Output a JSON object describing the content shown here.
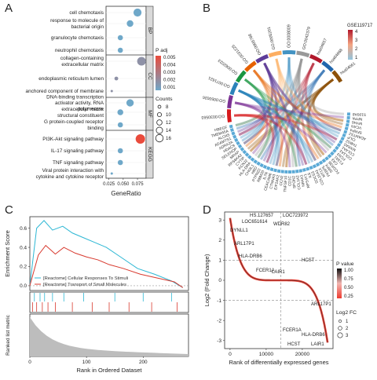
{
  "panels": {
    "a": "A",
    "b": "B",
    "c": "C",
    "d": "D"
  },
  "colors": {
    "padj_high": "#e94b3c",
    "padj_low": "#6fa8c9",
    "chord_gene": "#5aa9d6",
    "cyan_line": "#2db7d4",
    "red_line": "#d8392e",
    "volcano_red": "#ee3b2f",
    "strip_bg": "#d9d9d9"
  },
  "chart_data": [
    {
      "type": "scatter",
      "panel": "A",
      "xlabel": "GeneRatio",
      "xtick_labels": [
        "0.025",
        "0.050",
        "0.075"
      ],
      "xlim": [
        0.02,
        0.09
      ],
      "groups": [
        {
          "name": "BP",
          "terms": [
            {
              "label": "cell chemotaxis",
              "x": 0.075,
              "padj": 0.001,
              "count": 14
            },
            {
              "label": "response to molecule of bacterial origin",
              "x": 0.062,
              "padj": 0.001,
              "count": 12
            },
            {
              "label": "granulocyte chemotaxis",
              "x": 0.045,
              "padj": 0.001,
              "count": 10
            },
            {
              "label": "neutrophil chemotaxis",
              "x": 0.045,
              "padj": 0.001,
              "count": 10
            }
          ]
        },
        {
          "name": "CC",
          "terms": [
            {
              "label": "collagen-containing extracellular matrix",
              "x": 0.082,
              "padj": 0.002,
              "count": 15
            },
            {
              "label": "endoplasmic reticulum lumen",
              "x": 0.038,
              "padj": 0.002,
              "count": 8
            },
            {
              "label": "anchored component of membrane",
              "x": 0.03,
              "padj": 0.002,
              "count": 6
            }
          ]
        },
        {
          "name": "MF",
          "terms": [
            {
              "label": "DNA-binding transcription activator activity, RNA polymerase",
              "x": 0.062,
              "padj": 0.001,
              "count": 13
            },
            {
              "label": "extracellular matrix structural constituent",
              "x": 0.045,
              "padj": 0.001,
              "count": 11
            },
            {
              "label": "G protein-coupled receptor binding",
              "x": 0.045,
              "padj": 0.001,
              "count": 10
            }
          ]
        },
        {
          "name": "KEGG",
          "terms": [
            {
              "label": "PI3K-Akt signaling pathway",
              "x": 0.08,
              "padj": 0.005,
              "count": 16
            },
            {
              "label": "IL-17 signaling pathway",
              "x": 0.045,
              "padj": 0.001,
              "count": 10
            },
            {
              "label": "TNF signaling pathway",
              "x": 0.045,
              "padj": 0.001,
              "count": 10
            },
            {
              "label": "Viral protein interaction with cytokine and cytokine receptor",
              "x": 0.03,
              "padj": 0.001,
              "count": 6
            }
          ]
        }
      ],
      "padj_legend": {
        "title": "P adj",
        "ticks": [
          "0.005",
          "0.004",
          "0.003",
          "0.002",
          "0.001"
        ]
      },
      "count_legend": {
        "title": "Counts",
        "values": [
          8,
          10,
          12,
          14,
          16
        ]
      }
    },
    {
      "type": "chord",
      "panel": "B",
      "legend_title": "GSE119717",
      "legend_ticks": [
        "4",
        "3",
        "2",
        "1"
      ],
      "genes": [
        "HBEGF",
        "TMEM45A",
        "ALOX5",
        "ADAMTS1",
        "ADRA2A",
        "HDAC9",
        "SELENOP",
        "MRAP",
        "RPS6KA2",
        "CYTIP",
        "KCNJ2",
        "HLA-DRA",
        "CHI3L1",
        "HBD",
        "PTPN22",
        "RBM20",
        "IL7R",
        "CEACAM6",
        "CTNNA3",
        "EIF2AK2",
        "CCN2",
        "TNFSF10",
        "CD1C",
        "SPON2",
        "COL1A2",
        "NR4A1",
        "RPS4Y1",
        "IL6",
        "SOCS3",
        "COL15A1",
        "MT1X",
        "FKBP5",
        "SRPX",
        "FCGR3B",
        "CA3",
        "F13A1",
        "FCN3",
        "COL1A1",
        "COL4A1",
        "MXRA5",
        "THBS2",
        "CILP",
        "ADAMTS2",
        "SFRP4",
        "VCAN",
        "MYH6",
        "NPPA",
        "S100A8"
      ],
      "go_terms": [
        "GO:0030593",
        "GO:0050026",
        "GO:0071621",
        "GO:0062023",
        "GO:0031225",
        "GO:0005788",
        "GO:0005201",
        "GO:0008009",
        "GO:0042379",
        "hsa04657",
        "hsa04668",
        "hsa04061"
      ]
    },
    {
      "type": "line",
      "panel": "C",
      "xlabel": "Rank in Ordered Dataset",
      "ylabel_top": "Enrichment Score",
      "ylabel_bottom": "Ranked list metric",
      "xticks": [
        0,
        100,
        200
      ],
      "yticks": [
        0.0,
        0.2,
        0.4,
        0.6
      ],
      "xlim": [
        0,
        280
      ],
      "ylim": [
        -0.05,
        0.72
      ],
      "series": [
        {
          "name": "[Reactome] Cellular Responses To Stimuli",
          "color": "#2db7d4",
          "x": [
            0,
            12,
            25,
            40,
            58,
            75,
            95,
            115,
            135,
            160,
            190,
            220,
            250,
            270
          ],
          "y": [
            0.0,
            0.6,
            0.68,
            0.58,
            0.62,
            0.55,
            0.5,
            0.45,
            0.4,
            0.3,
            0.18,
            0.12,
            0.05,
            -0.02
          ]
        },
        {
          "name": "[Reactome] Transport of Small Molecules",
          "color": "#d8392e",
          "x": [
            0,
            15,
            28,
            45,
            60,
            80,
            100,
            120,
            140,
            165,
            195,
            225,
            255,
            270
          ],
          "y": [
            0.0,
            0.32,
            0.42,
            0.33,
            0.4,
            0.34,
            0.3,
            0.27,
            0.22,
            0.18,
            0.12,
            0.08,
            0.04,
            -0.02
          ]
        }
      ]
    },
    {
      "type": "scatter",
      "panel": "D",
      "xlabel": "Rank of differentially expressed genes",
      "ylabel": "Log2 (Fold Change)",
      "xticks": [
        0,
        10000,
        20000
      ],
      "yticks": [
        -3,
        -2,
        -1,
        0,
        1,
        2,
        3
      ],
      "xlim": [
        -1500,
        28500
      ],
      "ylim": [
        -3.4,
        3.4
      ],
      "labels_up": [
        "HS.127657",
        "LOC723972",
        "LOC651614",
        "WDR82",
        "DYNLL1",
        "ARL17P1",
        "HLA-DRB6",
        "FCER1A",
        "LAIR1",
        "HCST"
      ],
      "labels_down": [
        "ARL17P1",
        "FCER1A",
        "HLA-DRB6",
        "HCST",
        "LAIR1"
      ],
      "pvalue_legend": {
        "title": "P value",
        "ticks": [
          "1.00",
          "0.75",
          "0.50",
          "0.25"
        ]
      },
      "logfc_legend": {
        "title": "Log2 FC",
        "values": [
          1,
          2,
          3
        ]
      }
    }
  ]
}
